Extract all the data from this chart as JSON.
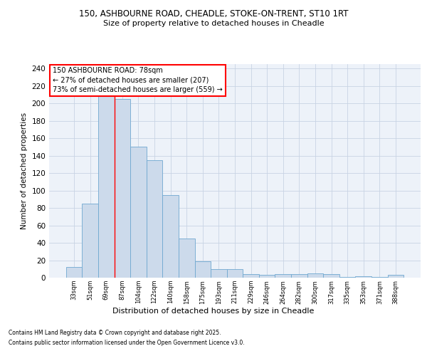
{
  "title1": "150, ASHBOURNE ROAD, CHEADLE, STOKE-ON-TRENT, ST10 1RT",
  "title2": "Size of property relative to detached houses in Cheadle",
  "xlabel": "Distribution of detached houses by size in Cheadle",
  "ylabel": "Number of detached properties",
  "categories": [
    "33sqm",
    "51sqm",
    "69sqm",
    "87sqm",
    "104sqm",
    "122sqm",
    "140sqm",
    "158sqm",
    "175sqm",
    "193sqm",
    "211sqm",
    "229sqm",
    "246sqm",
    "264sqm",
    "282sqm",
    "300sqm",
    "317sqm",
    "335sqm",
    "353sqm",
    "371sqm",
    "388sqm"
  ],
  "values": [
    12,
    85,
    210,
    205,
    150,
    135,
    95,
    45,
    19,
    10,
    10,
    4,
    3,
    4,
    4,
    5,
    4,
    1,
    2,
    1,
    3
  ],
  "bar_color": "#ccdaeb",
  "bar_edge_color": "#6fa8d0",
  "grid_color": "#c8d4e4",
  "background_color": "#edf2f9",
  "annotation_box_text": "150 ASHBOURNE ROAD: 78sqm\n← 27% of detached houses are smaller (207)\n73% of semi-detached houses are larger (559) →",
  "red_line_x": 2.5,
  "footer_line1": "Contains HM Land Registry data © Crown copyright and database right 2025.",
  "footer_line2": "Contains public sector information licensed under the Open Government Licence v3.0.",
  "ylim": [
    0,
    245
  ],
  "yticks": [
    0,
    20,
    40,
    60,
    80,
    100,
    120,
    140,
    160,
    180,
    200,
    220,
    240
  ]
}
